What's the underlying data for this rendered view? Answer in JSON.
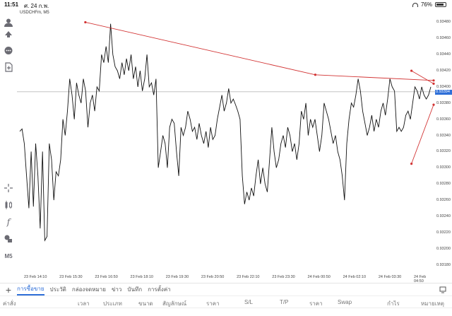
{
  "status": {
    "time": "11:51",
    "date": "ศ. 24 ก.พ.",
    "battery": "76%"
  },
  "chart": {
    "symbol": "USDCHFm, M5",
    "current_price": "0.93394"
  },
  "chart_data": {
    "type": "line",
    "x": [
      "23 Feb 14:10",
      "23 Feb 15:30",
      "23 Feb 16:50",
      "23 Feb 18:10",
      "23 Feb 19:30",
      "23 Feb 20:50",
      "23 Feb 22:10",
      "23 Feb 23:30",
      "24 Feb 00:50",
      "24 Feb 02:10",
      "24 Feb 03:30",
      "24 Feb 04:50"
    ],
    "y_ticks": [
      "0.93480",
      "0.93460",
      "0.93440",
      "0.93420",
      "0.93400",
      "0.93380",
      "0.93360",
      "0.93340",
      "0.93320",
      "0.93300",
      "0.93280",
      "0.93260",
      "0.93240",
      "0.93220",
      "0.93200",
      "0.93180"
    ],
    "ylim": [
      0.9317,
      0.9349
    ],
    "price_series": [
      0.93345,
      0.93348,
      0.9333,
      0.9329,
      0.9325,
      0.9332,
      0.93252,
      0.9333,
      0.9329,
      0.93225,
      0.9332,
      0.9321,
      0.93215,
      0.9333,
      0.9331,
      0.9326,
      0.93295,
      0.9329,
      0.9331,
      0.9336,
      0.9334,
      0.9337,
      0.9341,
      0.9339,
      0.9336,
      0.93405,
      0.9339,
      0.9338,
      0.9341,
      0.93395,
      0.9335,
      0.9338,
      0.9339,
      0.9337,
      0.934,
      0.93395,
      0.9344,
      0.9343,
      0.9345,
      0.9343,
      0.93478,
      0.9344,
      0.93425,
      0.9342,
      0.9341,
      0.9343,
      0.93415,
      0.93435,
      0.9342,
      0.9344,
      0.9341,
      0.93425,
      0.934,
      0.9342,
      0.93395,
      0.9341,
      0.9344,
      0.934,
      0.93405,
      0.9339,
      0.9341,
      0.933,
      0.9332,
      0.9334,
      0.9333,
      0.933,
      0.9335,
      0.9336,
      0.93355,
      0.9332,
      0.9329,
      0.9335,
      0.9334,
      0.9335,
      0.9337,
      0.9336,
      0.93345,
      0.9335,
      0.93335,
      0.93355,
      0.9334,
      0.9333,
      0.93345,
      0.93325,
      0.9335,
      0.93335,
      0.9334,
      0.9336,
      0.93375,
      0.9339,
      0.9337,
      0.9338,
      0.93398,
      0.9338,
      0.93385,
      0.93378,
      0.9337,
      0.9336,
      0.9329,
      0.93255,
      0.9327,
      0.9326,
      0.93275,
      0.93265,
      0.9329,
      0.9331,
      0.9328,
      0.933,
      0.9328,
      0.9327,
      0.9331,
      0.9335,
      0.9332,
      0.933,
      0.9331,
      0.9333,
      0.9334,
      0.93325,
      0.9335,
      0.9334,
      0.9332,
      0.9333,
      0.9331,
      0.9333,
      0.9337,
      0.9336,
      0.9338,
      0.9334,
      0.9336,
      0.9335,
      0.9336,
      0.9334,
      0.9332,
      0.9334,
      0.9338,
      0.9337,
      0.9336,
      0.93345,
      0.9333,
      0.9334,
      0.9332,
      0.9331,
      0.9329,
      0.9326,
      0.9333,
      0.9336,
      0.9338,
      0.93375,
      0.9339,
      0.9341,
      0.93395,
      0.9337,
      0.93355,
      0.9334,
      0.9335,
      0.93365,
      0.93345,
      0.9336,
      0.9335,
      0.9337,
      0.9338,
      0.93365,
      0.93385,
      0.9341,
      0.934,
      0.93395,
      0.93345,
      0.9335,
      0.93345,
      0.9335,
      0.93365,
      0.9337,
      0.9336,
      0.9338,
      0.934,
      0.93395,
      0.93385,
      0.934,
      0.9339,
      0.93385,
      0.9339,
      0.934
    ],
    "trendlines": [
      {
        "points": [
          [
            0.02,
            0.9348
          ],
          [
            0.57,
            0.93415
          ],
          [
            0.98,
            0.93408
          ]
        ]
      },
      {
        "points": [
          [
            0.8,
            0.9342
          ],
          [
            0.98,
            0.93404
          ]
        ]
      },
      {
        "points": [
          [
            0.8,
            0.93305
          ],
          [
            0.98,
            0.93378
          ]
        ]
      }
    ]
  },
  "bottom_tabs": {
    "items": [
      "การซื้อขาย",
      "ประวัติ",
      "กล่องจดหมาย",
      "ข่าว",
      "บันทึก",
      "การตั้งค่า"
    ]
  },
  "columns": {
    "items": [
      "ค่าสั่ง",
      "เวลา",
      "ประเภท",
      "ขนาด",
      "สัญลักษณ์",
      "ราคา",
      "S/L",
      "T/P",
      "ราคา",
      "Swap",
      "กำไร",
      "หมายเหตุ"
    ]
  },
  "colors": {
    "accent": "#2e6fd8",
    "trendline": "#d23333",
    "price_line": "#111111"
  }
}
